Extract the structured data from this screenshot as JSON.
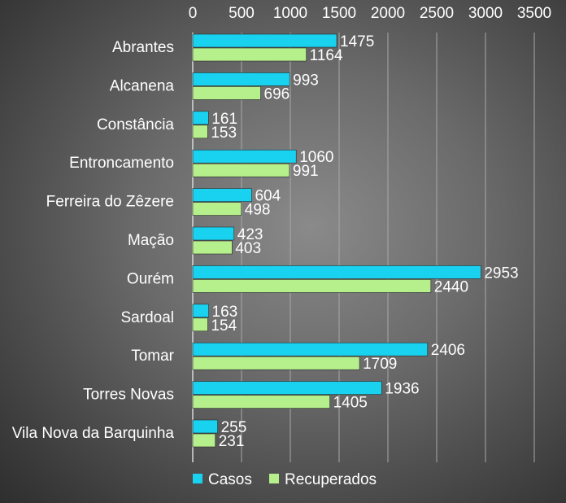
{
  "colors": {
    "casos": "#18d2f0",
    "recuperados": "#b6f08c",
    "grid": "#a8a8a8",
    "text": "#ffffff"
  },
  "chart_data": {
    "type": "bar",
    "orientation": "horizontal",
    "xlim": [
      0,
      3500
    ],
    "ticks": [
      0,
      500,
      1000,
      1500,
      2000,
      2500,
      3000,
      3500
    ],
    "tick_position": "top",
    "grid": true,
    "legend_position": "bottom",
    "categories": [
      "Abrantes",
      "Alcanena",
      "Constância",
      "Entroncamento",
      "Ferreira do Zêzere",
      "Mação",
      "Ourém",
      "Sardoal",
      "Tomar",
      "Torres Novas",
      "Vila Nova da Barquinha"
    ],
    "series": [
      {
        "name": "Casos",
        "values": [
          1475,
          993,
          161,
          1060,
          604,
          423,
          2953,
          163,
          2406,
          1936,
          255
        ]
      },
      {
        "name": "Recuperados",
        "values": [
          1164,
          696,
          153,
          991,
          498,
          403,
          2440,
          154,
          1709,
          1405,
          231
        ]
      }
    ]
  }
}
